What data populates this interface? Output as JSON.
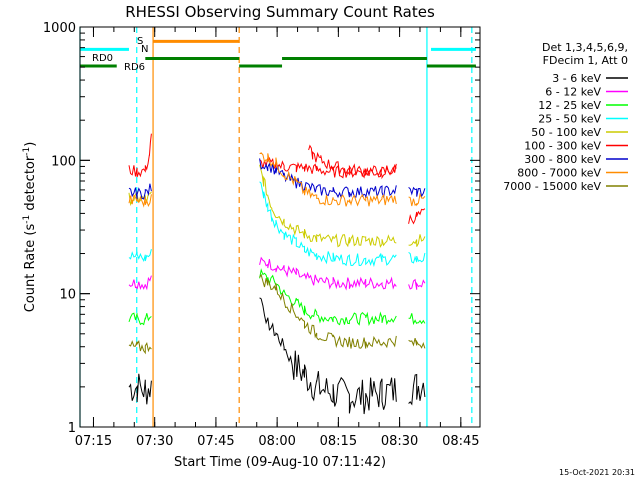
{
  "chart_data": {
    "type": "line",
    "title": "RHESSI Observing Summary Count Rates",
    "xlabel": "Start Time (09-Aug-10 07:11:42)",
    "ylabel_main": "Count Rate (s",
    "ylabel_sup1": "-1",
    "ylabel_mid": " detector",
    "ylabel_sup2": "-1",
    "ylabel_end": ")",
    "x_unit": "minutes after 07:11:42",
    "xlim": [
      0,
      98
    ],
    "ylim": [
      1,
      1000
    ],
    "yscale": "log",
    "x_ticks": [
      {
        "label": "07:15",
        "x": 3.3
      },
      {
        "label": "07:30",
        "x": 18.3
      },
      {
        "label": "07:45",
        "x": 33.3
      },
      {
        "label": "08:00",
        "x": 48.3
      },
      {
        "label": "08:15",
        "x": 63.3
      },
      {
        "label": "08:30",
        "x": 78.3
      },
      {
        "label": "08:45",
        "x": 93.3
      }
    ],
    "y_ticks": [
      {
        "label": "1",
        "y": 1
      },
      {
        "label": "10",
        "y": 10
      },
      {
        "label": "100",
        "y": 100
      },
      {
        "label": "1000",
        "y": 1000
      }
    ],
    "legend": {
      "header1": "Det 1,3,4,5,6,9,",
      "header2": "FDecim 1, Att 0",
      "placement": "right"
    },
    "series": [
      {
        "name": "3 - 6 keV",
        "color": "#000000",
        "segments": [
          {
            "x": [
              12.0,
              14.0,
              16.0,
              17.5
            ],
            "y": [
              2.0,
              2.0,
              1.9,
              2.0
            ]
          },
          {
            "x": [
              44.0,
              46.0,
              48.0,
              50.0,
              52.0,
              55.0,
              58.0,
              62.0,
              66.0,
              70.0,
              74.0,
              77.5
            ],
            "y": [
              10.0,
              6.0,
              5.0,
              4.0,
              3.0,
              2.5,
              2.0,
              1.8,
              1.7,
              1.7,
              1.8,
              1.9
            ]
          },
          {
            "x": [
              80.5,
              82.5,
              84.5
            ],
            "y": [
              2.0,
              2.0,
              2.2
            ]
          }
        ]
      },
      {
        "name": "6 - 12 keV",
        "color": "#ff00ff",
        "segments": [
          {
            "x": [
              12.0,
              14.0,
              16.0,
              17.5
            ],
            "y": [
              12.0,
              12.0,
              11.8,
              13.0
            ]
          },
          {
            "x": [
              44.0,
              46.0,
              48.0,
              50.0,
              53.0,
              55.0,
              58.0,
              62.0,
              66.0,
              70.0,
              74.0,
              77.5
            ],
            "y": [
              17.0,
              17.0,
              16.0,
              15.0,
              14.0,
              13.0,
              12.5,
              12.0,
              12.0,
              12.0,
              12.0,
              12.0
            ]
          },
          {
            "x": [
              80.5,
              82.5,
              84.5
            ],
            "y": [
              12.0,
              11.8,
              12.0
            ]
          }
        ]
      },
      {
        "name": "12 - 25 keV",
        "color": "#00ff00",
        "segments": [
          {
            "x": [
              12.0,
              14.0,
              16.0,
              17.5
            ],
            "y": [
              6.5,
              6.5,
              6.3,
              7.0
            ]
          },
          {
            "x": [
              44.0,
              46.0,
              48.0,
              50.0,
              53.0,
              55.0,
              58.0,
              62.0,
              66.0,
              70.0,
              74.0,
              77.5
            ],
            "y": [
              14.0,
              13.0,
              12.0,
              10.0,
              8.5,
              7.5,
              6.8,
              6.5,
              6.5,
              6.5,
              6.5,
              6.8
            ]
          },
          {
            "x": [
              80.5,
              82.5,
              84.5
            ],
            "y": [
              6.5,
              6.5,
              6.5
            ]
          }
        ]
      },
      {
        "name": "25 - 50 keV",
        "color": "#00ffff",
        "segments": [
          {
            "x": [
              12.0,
              14.0,
              16.0,
              17.5
            ],
            "y": [
              19.0,
              19.0,
              18.5,
              20.0
            ]
          },
          {
            "x": [
              44.0,
              45.0,
              46.0,
              47.0,
              48.0,
              50.0,
              53.0,
              55.0,
              58.0,
              62.0,
              66.0,
              70.0,
              74.0,
              77.5
            ],
            "y": [
              75.0,
              55.0,
              45.0,
              38.0,
              34.0,
              28.0,
              24.0,
              21.0,
              19.5,
              18.5,
              18.0,
              18.0,
              18.0,
              18.5
            ]
          },
          {
            "x": [
              80.5,
              82.5,
              84.5
            ],
            "y": [
              18.5,
              18.0,
              18.5
            ]
          }
        ]
      },
      {
        "name": "50 - 100 keV",
        "color": "#cccc00",
        "segments": [
          {
            "x": [
              12.0,
              14.0,
              16.0,
              17.5
            ],
            "y": [
              52.0,
              52.0,
              51.0,
              54.0
            ]
          },
          {
            "x": [
              44.0,
              45.0,
              46.0,
              47.0,
              48.0,
              50.0,
              53.0,
              55.0,
              58.0,
              62.0,
              66.0,
              70.0,
              74.0,
              77.5
            ],
            "y": [
              88.0,
              70.0,
              55.0,
              45.0,
              40.0,
              35.0,
              30.0,
              28.0,
              26.0,
              25.0,
              25.0,
              25.0,
              25.0,
              25.0
            ]
          },
          {
            "x": [
              80.5,
              82.5,
              84.5
            ],
            "y": [
              25.0,
              25.0,
              26.0
            ]
          }
        ]
      },
      {
        "name": "100 - 300 keV",
        "color": "#ff0000",
        "segments": [
          {
            "x": [
              12.0,
              14.0,
              16.0,
              17.0,
              17.5
            ],
            "y": [
              85.0,
              82.0,
              84.0,
              110.0,
              150.0
            ]
          },
          {
            "x": [
              44.0,
              46.0,
              48.0,
              50.0,
              53.0,
              55.0,
              58.0,
              62.0,
              66.0,
              70.0,
              74.0,
              77.5
            ],
            "y": [
              95.0,
              95.0,
              92.0,
              90.0,
              88.0,
              88.0,
              85.0,
              82.0,
              82.0,
              82.0,
              82.0,
              85.0
            ]
          },
          {
            "x": [
              56.0,
              57.0,
              59.0,
              62.0,
              66.0,
              70.0,
              74.0,
              77.5
            ],
            "y": [
              120.0,
              110.0,
              100.0,
              90.0,
              85.0,
              83.0,
              82.0,
              85.0
            ]
          },
          {
            "x": [
              80.5,
              82.5,
              84.5
            ],
            "y": [
              36.0,
              38.0,
              40.0
            ]
          }
        ]
      },
      {
        "name": "300 - 800 keV",
        "color": "#0000cc",
        "segments": [
          {
            "x": [
              12.0,
              14.0,
              16.0,
              17.5
            ],
            "y": [
              58.0,
              56.0,
              57.0,
              62.0
            ]
          },
          {
            "x": [
              44.0,
              46.0,
              48.0,
              50.0,
              53.0,
              55.0,
              58.0,
              62.0,
              66.0,
              70.0,
              74.0,
              77.5
            ],
            "y": [
              95.0,
              92.0,
              85.0,
              75.0,
              68.0,
              65.0,
              60.0,
              58.0,
              58.0,
              58.0,
              58.0,
              60.0
            ]
          },
          {
            "x": [
              80.5,
              82.5,
              84.5
            ],
            "y": [
              60.0,
              58.0,
              58.0
            ]
          }
        ]
      },
      {
        "name": "800 - 7000 keV",
        "color": "#ff8c00",
        "segments": [
          {
            "x": [
              12.0,
              14.0,
              16.0,
              17.5
            ],
            "y": [
              50.0,
              50.0,
              49.0,
              52.0
            ]
          },
          {
            "x": [
              44.0,
              46.0,
              48.0,
              50.0,
              53.0,
              55.0,
              58.0,
              62.0,
              66.0,
              70.0,
              74.0,
              77.5
            ],
            "y": [
              110.0,
              105.0,
              95.0,
              80.0,
              68.0,
              58.0,
              52.0,
              50.0,
              50.0,
              50.0,
              50.0,
              52.0
            ]
          },
          {
            "x": [
              80.5,
              82.5,
              84.5
            ],
            "y": [
              50.0,
              50.0,
              51.0
            ]
          }
        ]
      },
      {
        "name": "7000 - 15000 keV",
        "color": "#808000",
        "segments": [
          {
            "x": [
              12.0,
              14.0,
              16.0,
              17.5
            ],
            "y": [
              4.0,
              4.0,
              3.9,
              4.2
            ]
          },
          {
            "x": [
              44.0,
              46.0,
              48.0,
              50.0,
              53.0,
              55.0,
              58.0,
              62.0,
              66.0,
              70.0,
              74.0,
              77.5
            ],
            "y": [
              13.0,
              12.0,
              11.0,
              9.0,
              7.0,
              6.0,
              5.0,
              4.5,
              4.3,
              4.3,
              4.3,
              4.5
            ]
          },
          {
            "x": [
              80.5,
              82.5,
              84.5
            ],
            "y": [
              4.3,
              4.2,
              4.3
            ]
          }
        ]
      }
    ],
    "flag_labels": {
      "rd0": "RD0",
      "rd6": "RD6",
      "s": "S",
      "n": "N"
    },
    "flag_bars": [
      {
        "color": "#00ffff",
        "y": 680,
        "x": [
          0,
          12.0
        ]
      },
      {
        "color": "#00ffff",
        "y": 680,
        "x": [
          86.0,
          97.0
        ]
      },
      {
        "color": "#ff8c00",
        "y": 780,
        "x": [
          17.9,
          39.0
        ]
      },
      {
        "color": "#008000",
        "y": 510,
        "x": [
          0,
          9.0
        ]
      },
      {
        "color": "#008000",
        "y": 580,
        "x": [
          16.0,
          39.0
        ]
      },
      {
        "color": "#008000",
        "y": 510,
        "x": [
          39.0,
          49.5
        ]
      },
      {
        "color": "#008000",
        "y": 580,
        "x": [
          49.5,
          85.0
        ]
      },
      {
        "color": "#008000",
        "y": 510,
        "x": [
          85.0,
          97.0
        ]
      }
    ],
    "vlines": [
      {
        "x": 0.0,
        "color": "#00ffff",
        "dashed": false
      },
      {
        "x": 13.9,
        "color": "#00ffff",
        "dashed": true
      },
      {
        "x": 17.9,
        "color": "#ff8c00",
        "dashed": false
      },
      {
        "x": 39.0,
        "color": "#ff8c00",
        "dashed": true
      },
      {
        "x": 85.0,
        "color": "#00ffff",
        "dashed": false
      },
      {
        "x": 96.0,
        "color": "#00ffff",
        "dashed": true
      }
    ],
    "footer": "15-Oct-2021 20:31"
  }
}
